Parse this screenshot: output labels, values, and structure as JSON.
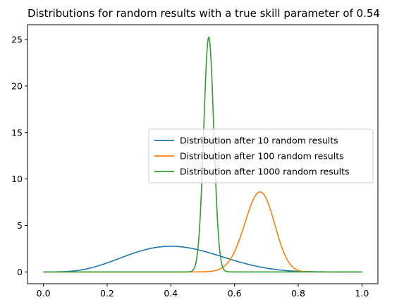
{
  "chart_data": {
    "type": "line",
    "title": "Distributions for random results with a true skill parameter of 0.54",
    "xlabel": "",
    "ylabel": "",
    "xlim": [
      -0.05,
      1.05
    ],
    "ylim": [
      -1.27,
      26.6
    ],
    "x_ticks": [
      "0.0",
      "0.2",
      "0.4",
      "0.6",
      "0.8",
      "1.0"
    ],
    "y_ticks": [
      "0",
      "5",
      "10",
      "15",
      "20",
      "25"
    ],
    "x_tick_values": [
      0.0,
      0.2,
      0.4,
      0.6,
      0.8,
      1.0
    ],
    "y_tick_values": [
      0,
      5,
      10,
      15,
      20,
      25
    ],
    "grid": false,
    "legend_position": "center-right",
    "series": [
      {
        "name": "Distribution after 10 random results",
        "color": "#1f77b4",
        "distribution": {
          "kind": "beta",
          "alpha": 5,
          "beta": 7
        },
        "x": [
          0.0,
          0.1,
          0.2,
          0.3,
          0.4,
          0.5,
          0.6,
          0.7,
          0.8,
          0.9,
          1.0
        ],
        "y": [
          0.0,
          0.26,
          1.33,
          2.38,
          2.79,
          2.26,
          1.33,
          0.55,
          0.13,
          0.01,
          0.0
        ]
      },
      {
        "name": "Distribution after 100 random results",
        "color": "#ff7f0e",
        "distribution": {
          "kind": "beta",
          "alpha": 69,
          "beta": 33
        },
        "x": [
          0.0,
          0.5,
          0.55,
          0.6,
          0.65,
          0.68,
          0.7,
          0.75,
          0.8,
          0.85,
          1.0
        ],
        "y": [
          0.0,
          0.06,
          0.91,
          3.8,
          7.5,
          8.65,
          8.3,
          4.5,
          1.1,
          0.05,
          0.0
        ]
      },
      {
        "name": "Distribution after 1000 random results",
        "color": "#2ca02c",
        "distribution": {
          "kind": "beta",
          "alpha": 520,
          "beta": 482
        },
        "x": [
          0.0,
          0.46,
          0.48,
          0.5,
          0.52,
          0.54,
          0.56,
          0.58,
          1.0
        ],
        "y": [
          0.0,
          0.1,
          2.0,
          15.0,
          25.3,
          15.0,
          2.0,
          0.1,
          0.0
        ]
      }
    ]
  }
}
